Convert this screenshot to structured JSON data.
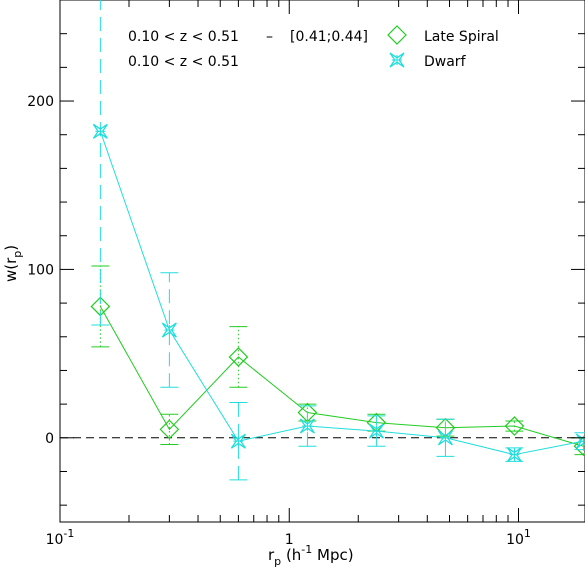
{
  "chart_data": {
    "type": "scatter",
    "x_scale": "log",
    "xlim": [
      0.1,
      19.5
    ],
    "ylim": [
      -50,
      260
    ],
    "x_major_ticks": [
      0.1,
      1,
      10
    ],
    "x_tick_labels": [
      {
        "base": "10",
        "exp": "-1"
      },
      {
        "base": "1",
        "exp": ""
      },
      {
        "base": "10",
        "exp": "1"
      }
    ],
    "y_ticks": [
      0,
      100,
      200
    ],
    "y_tick_labels": [
      "0",
      "100",
      "200"
    ],
    "xlabel": {
      "main": "r",
      "sub": "p",
      "rest": "(h",
      "sup": "-1",
      "end": "Mpc)"
    },
    "ylabel": {
      "main": "w(r",
      "sub": "p",
      "end": ")"
    },
    "zero_line": true,
    "annotations": [
      "0.10 < z < 0.51",
      "–",
      "[0.41;0.44]",
      "0.10 < z < 0.51"
    ],
    "series": [
      {
        "name": "Late Spiral",
        "color": "#22cc22",
        "marker": "diamond",
        "errorbar_style": "dotted",
        "x": [
          0.15,
          0.3,
          0.6,
          1.2,
          2.4,
          4.8,
          9.6,
          19.2
        ],
        "y": [
          78,
          5,
          48,
          15,
          9,
          6,
          7,
          -5
        ],
        "err": [
          24,
          9,
          18,
          5,
          5,
          5,
          3,
          5
        ]
      },
      {
        "name": "Dwarf",
        "color": "#22dddd",
        "marker": "star",
        "errorbar_style": "dashed",
        "x": [
          0.15,
          0.3,
          0.6,
          1.2,
          2.4,
          4.8,
          9.6,
          19.2
        ],
        "y": [
          182,
          64,
          -2,
          7,
          4,
          0,
          -10,
          -2
        ],
        "err": [
          115,
          34,
          23,
          12,
          9,
          11,
          4,
          5
        ]
      }
    ]
  }
}
